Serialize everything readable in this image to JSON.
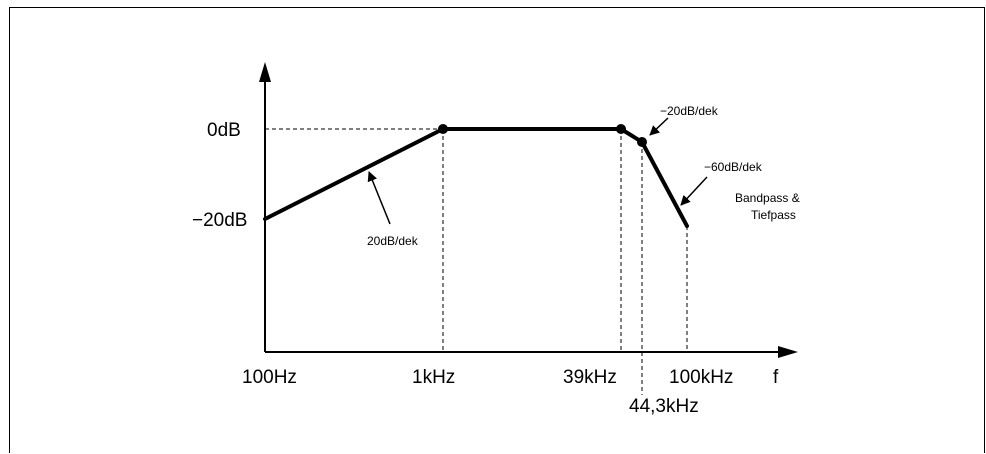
{
  "diagram": {
    "y_labels": {
      "zero": "0dB",
      "minus20": "−20dB"
    },
    "x_labels": {
      "f100": "100Hz",
      "f1k": "1kHz",
      "f39k": "39kHz",
      "f100k": "100kHz",
      "f44k": "44,3kHz",
      "axis": "f"
    },
    "annotations": {
      "rise": "20dB/dek",
      "knee": "−20dB/dek",
      "steep": "−60dB/dek",
      "filter_line1": "Bandpass &",
      "filter_line2": "Tiefpass"
    },
    "colors": {
      "line": "#000000",
      "background": "#ffffff"
    }
  }
}
